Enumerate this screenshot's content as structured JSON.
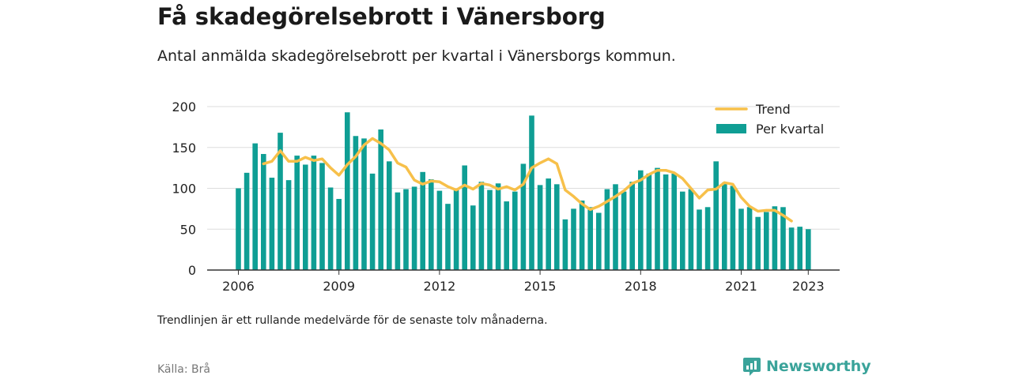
{
  "header": {
    "title": "Få skadegörelsebrott i Vänersborg",
    "subtitle": "Antal anmälda skadegörelsebrott per kvartal i Vänersborgs kommun."
  },
  "footer": {
    "note": "Trendlinjen är ett rullande medelvärde för de senaste tolv månaderna.",
    "source": "Källa: Brå",
    "brand": "Newsworthy"
  },
  "colors": {
    "bar": "#0f9e94",
    "trend": "#f7c04a",
    "grid": "#dddddd",
    "axis": "#333333",
    "brand": "#3aa39a"
  },
  "chart_data": {
    "type": "bar",
    "x_start": "2006 Q1",
    "x_end": "2023 Q1",
    "xticks": [
      "2006",
      "2009",
      "2012",
      "2015",
      "2018",
      "2021",
      "2023"
    ],
    "yticks": [
      "0",
      "50",
      "100",
      "150",
      "200"
    ],
    "ylim": [
      0,
      200
    ],
    "grid": true,
    "legend_position": "top-right",
    "series": [
      {
        "name": "Per kvartal",
        "type": "bar",
        "values": [
          100,
          119,
          155,
          142,
          113,
          168,
          110,
          140,
          129,
          140,
          131,
          101,
          87,
          193,
          164,
          161,
          118,
          172,
          133,
          95,
          99,
          102,
          120,
          111,
          97,
          81,
          98,
          128,
          79,
          108,
          98,
          106,
          84,
          96,
          130,
          189,
          104,
          112,
          105,
          62,
          75,
          85,
          77,
          70,
          99,
          105,
          96,
          108,
          122,
          118,
          125,
          117,
          118,
          96,
          99,
          74,
          77,
          133,
          107,
          103,
          75,
          77,
          65,
          71,
          78,
          77,
          52,
          53,
          50
        ]
      },
      {
        "name": "Trend",
        "type": "line",
        "start_index": 3,
        "values": [
          130,
          133,
          146,
          133,
          133,
          138,
          134,
          136,
          125,
          116,
          129,
          139,
          153,
          161,
          155,
          147,
          131,
          126,
          110,
          105,
          109,
          108,
          102,
          98,
          104,
          99,
          106,
          104,
          99,
          102,
          98,
          105,
          125,
          131,
          136,
          130,
          98,
          90,
          81,
          74,
          78,
          84,
          90,
          97,
          106,
          110,
          117,
          122,
          122,
          119,
          112,
          100,
          88,
          98,
          99,
          107,
          105,
          89,
          78,
          72,
          73,
          73,
          67,
          60
        ]
      }
    ]
  }
}
